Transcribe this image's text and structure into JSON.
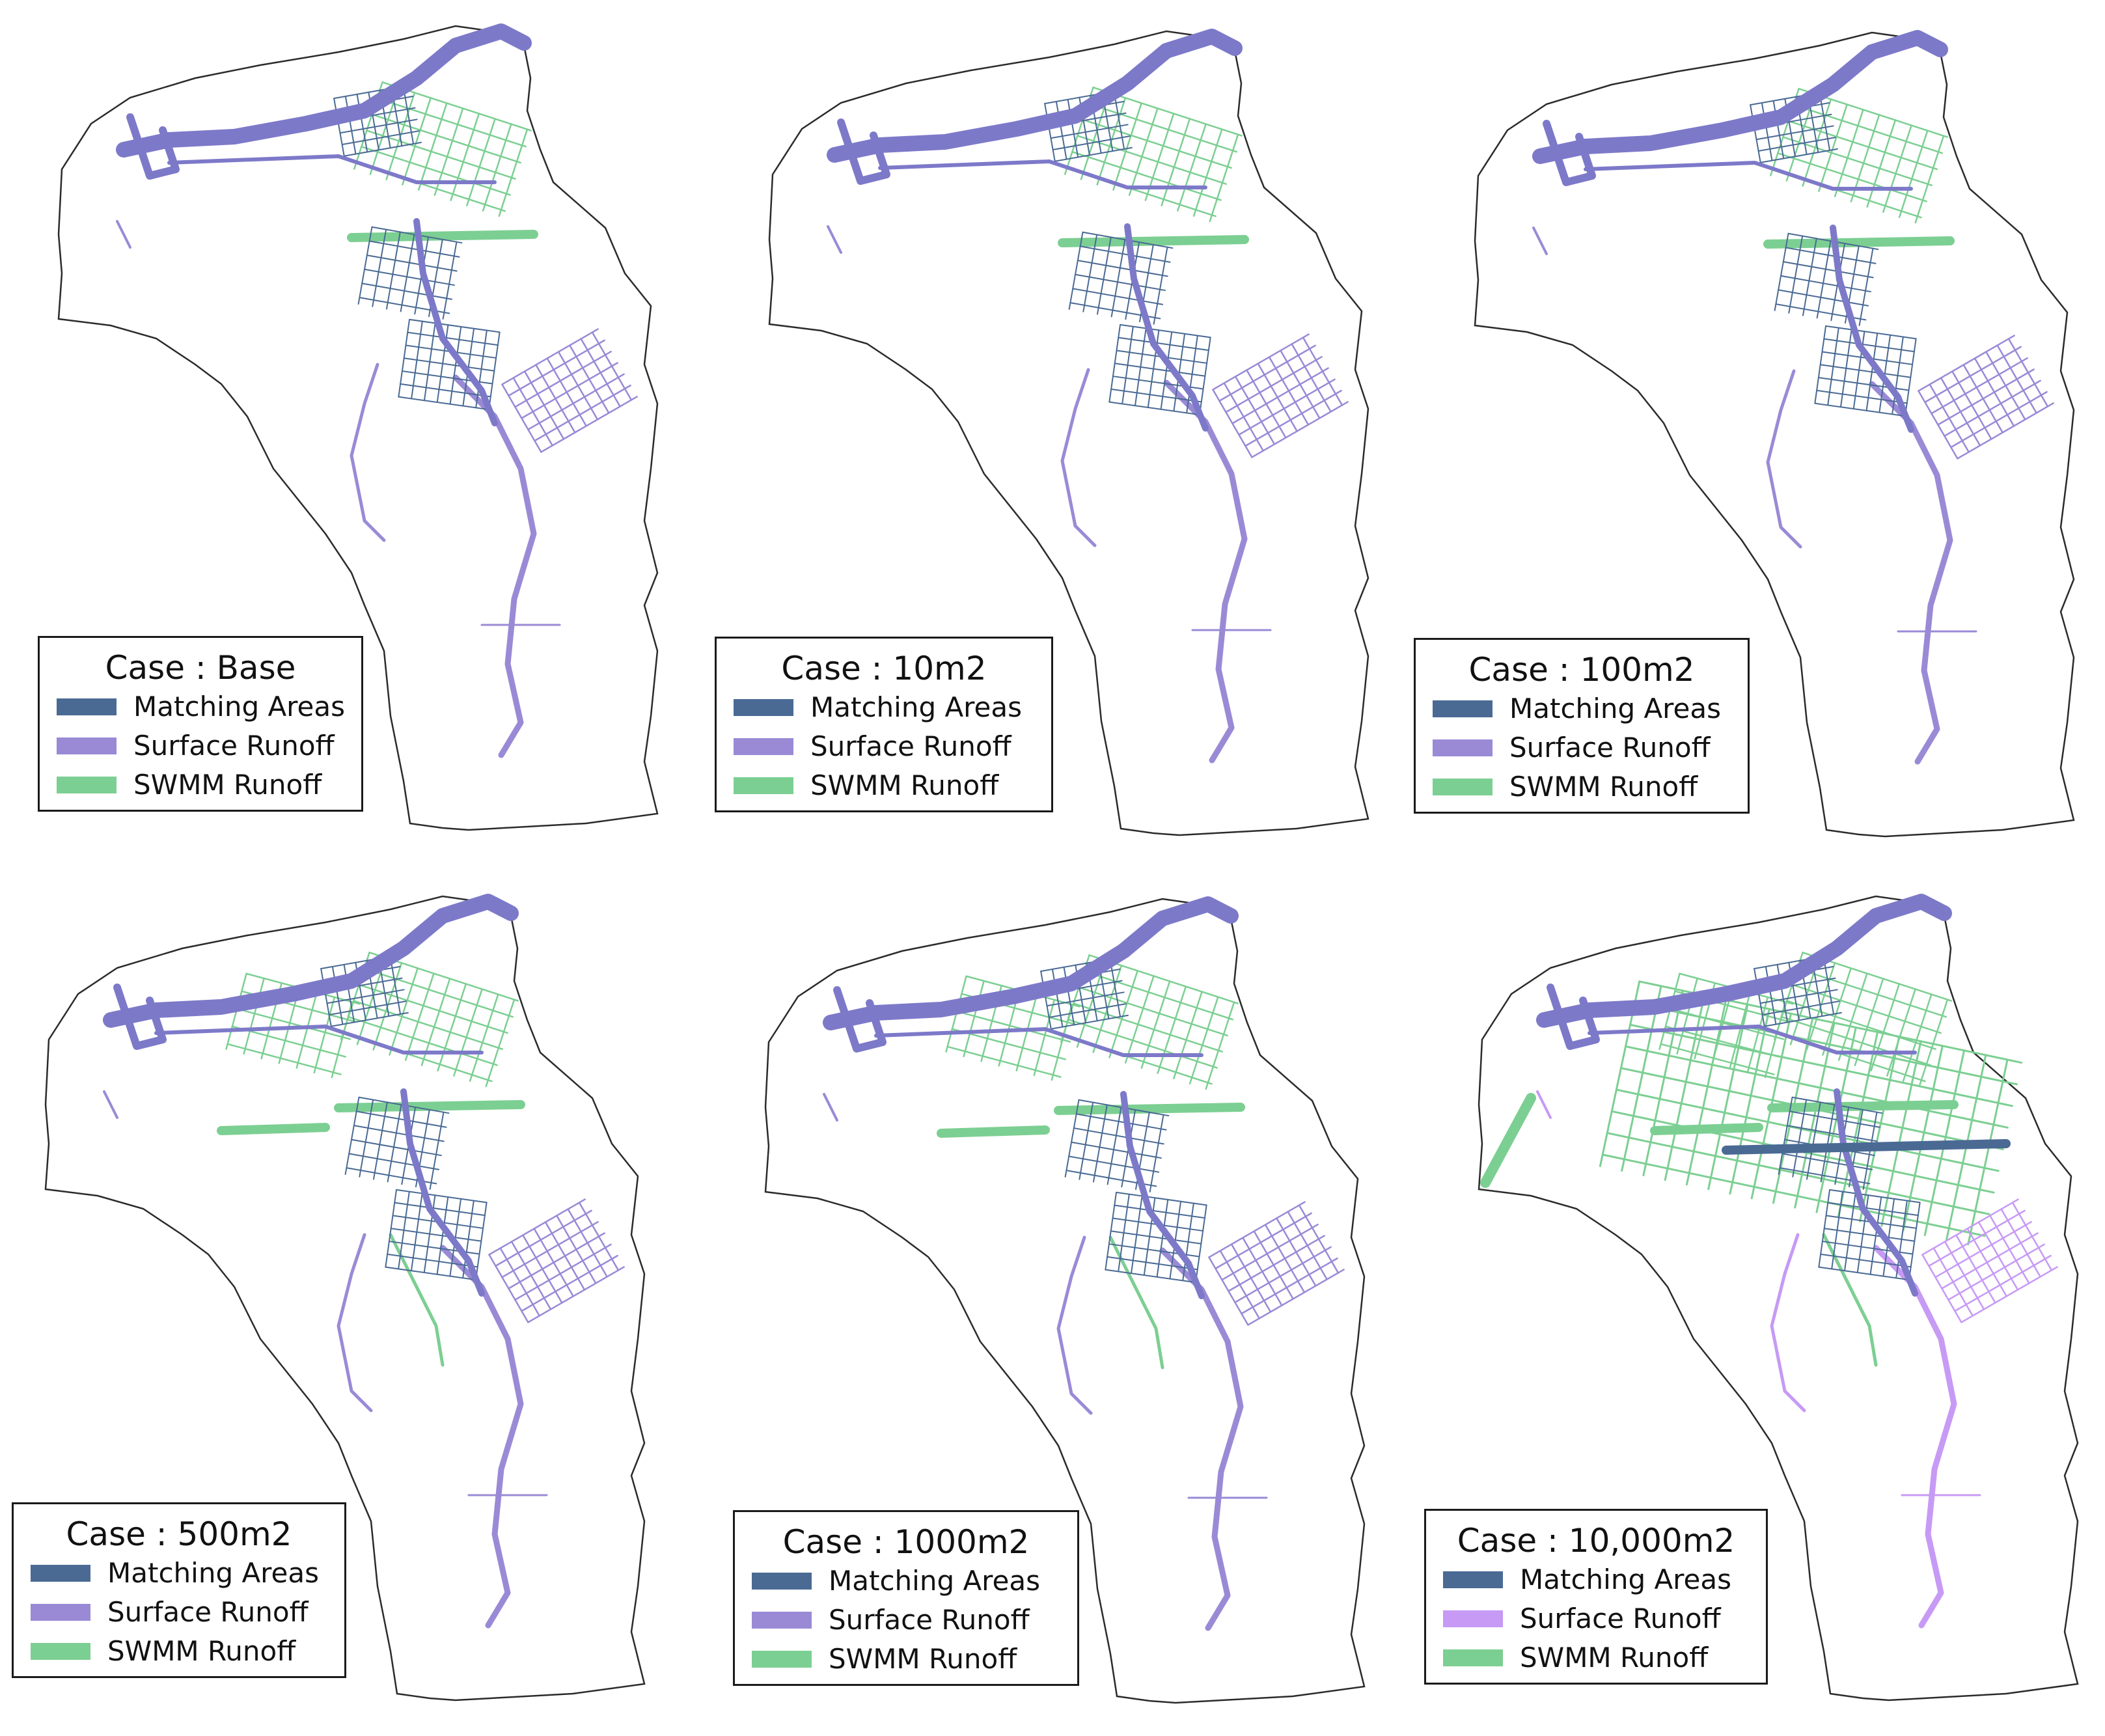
{
  "legend_labels": {
    "matching": "Matching Areas",
    "surface": "Surface Runoff",
    "swmm": "SWMM Runoff"
  },
  "colors": {
    "matching": "#4a6a94",
    "surface": "#9a8ad6",
    "surface_10000": "#c79af5",
    "swmm": "#7ccf92",
    "corridor": "#7d79c9",
    "boundary": "#2b2b2b"
  },
  "panels": [
    {
      "id": "base",
      "case": "Case : Base",
      "swmm_extent": 1,
      "surface_color_key": "surface"
    },
    {
      "id": "10m2",
      "case": "Case : 10m2",
      "swmm_extent": 1,
      "surface_color_key": "surface"
    },
    {
      "id": "100m2",
      "case": "Case : 100m2",
      "swmm_extent": 1,
      "surface_color_key": "surface"
    },
    {
      "id": "500m2",
      "case": "Case : 500m2",
      "swmm_extent": 2,
      "surface_color_key": "surface"
    },
    {
      "id": "1000m2",
      "case": "Case : 1000m2",
      "swmm_extent": 2,
      "surface_color_key": "surface"
    },
    {
      "id": "10000m2",
      "case": "Case : 10,000m2",
      "swmm_extent": 3,
      "surface_color_key": "surface_10000"
    }
  ]
}
